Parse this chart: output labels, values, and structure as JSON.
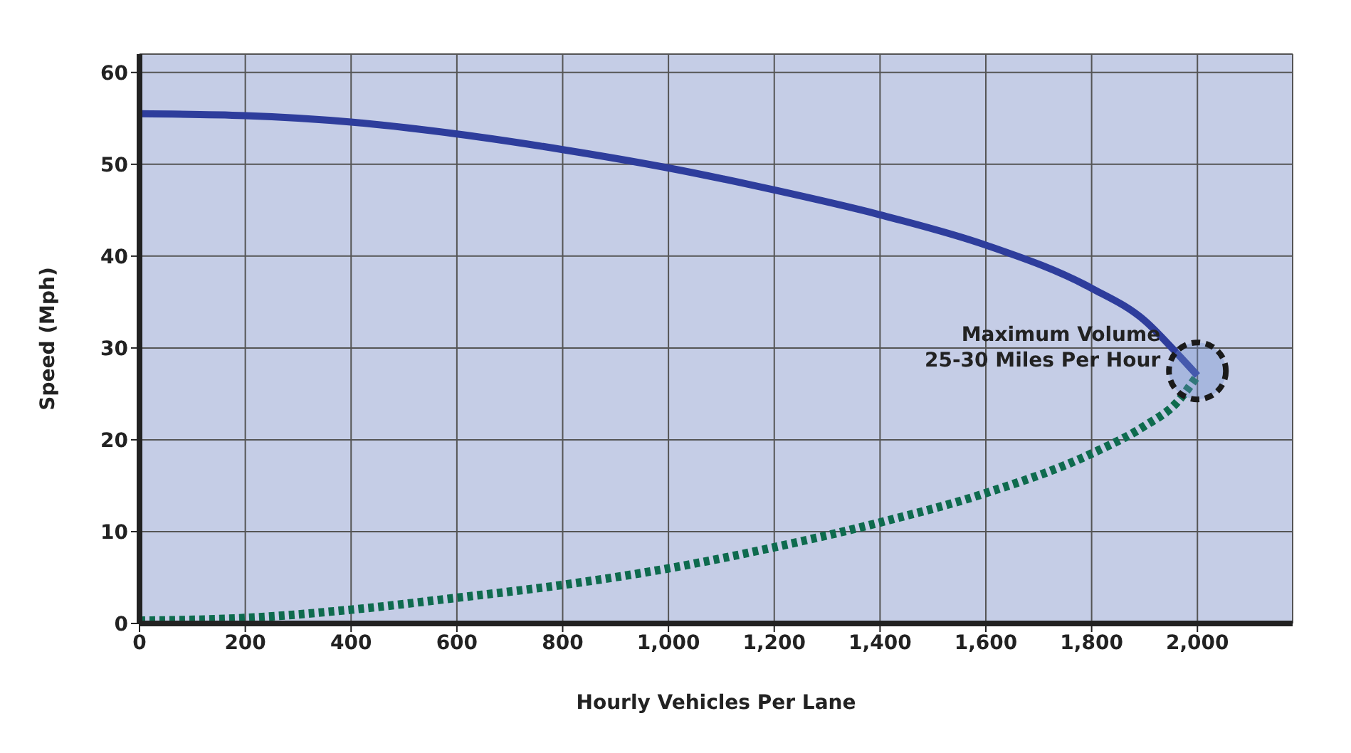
{
  "chart_data": {
    "type": "line",
    "xlabel": "Hourly Vehicles Per Lane",
    "ylabel": "Speed (Mph)",
    "xlim": [
      0,
      2180
    ],
    "ylim": [
      0,
      62
    ],
    "xticks": [
      0,
      {
        "value": 200,
        "label": "200"
      },
      {
        "value": 400,
        "label": "400"
      },
      {
        "value": 600,
        "label": "600"
      },
      {
        "value": 800,
        "label": "800"
      },
      {
        "value": 1000,
        "label": "1,000"
      },
      {
        "value": 1200,
        "label": "1,200"
      },
      {
        "value": 1400,
        "label": "1,400"
      },
      {
        "value": 1600,
        "label": "1,600"
      },
      {
        "value": 1800,
        "label": "1,800"
      },
      {
        "value": 2000,
        "label": "2,000"
      }
    ],
    "yticks": [
      0,
      10,
      20,
      30,
      40,
      50,
      60
    ],
    "grid": true,
    "series": [
      {
        "color": "#2e3d9c",
        "line_style": "solid",
        "x": [
          0,
          200,
          400,
          600,
          800,
          1000,
          1200,
          1400,
          1600,
          1800,
          1900,
          1960,
          2000
        ],
        "values": [
          55.5,
          55.3,
          54.6,
          53.3,
          51.6,
          49.6,
          47.2,
          44.5,
          41.2,
          36.5,
          33,
          29.5,
          27
        ]
      },
      {
        "color": "#0e6b4e",
        "line_style": "dotted",
        "x": [
          0,
          200,
          400,
          600,
          800,
          1000,
          1200,
          1400,
          1600,
          1800,
          1900,
          1960,
          2000
        ],
        "values": [
          0.3,
          0.6,
          1.5,
          2.8,
          4.2,
          6,
          8.3,
          11,
          14.2,
          18.5,
          21.5,
          24,
          27
        ]
      }
    ],
    "annotations": [
      {
        "text": "Maximum Volume\n25-30 Miles Per Hour",
        "x": 2000,
        "y": 27.5
      }
    ]
  }
}
